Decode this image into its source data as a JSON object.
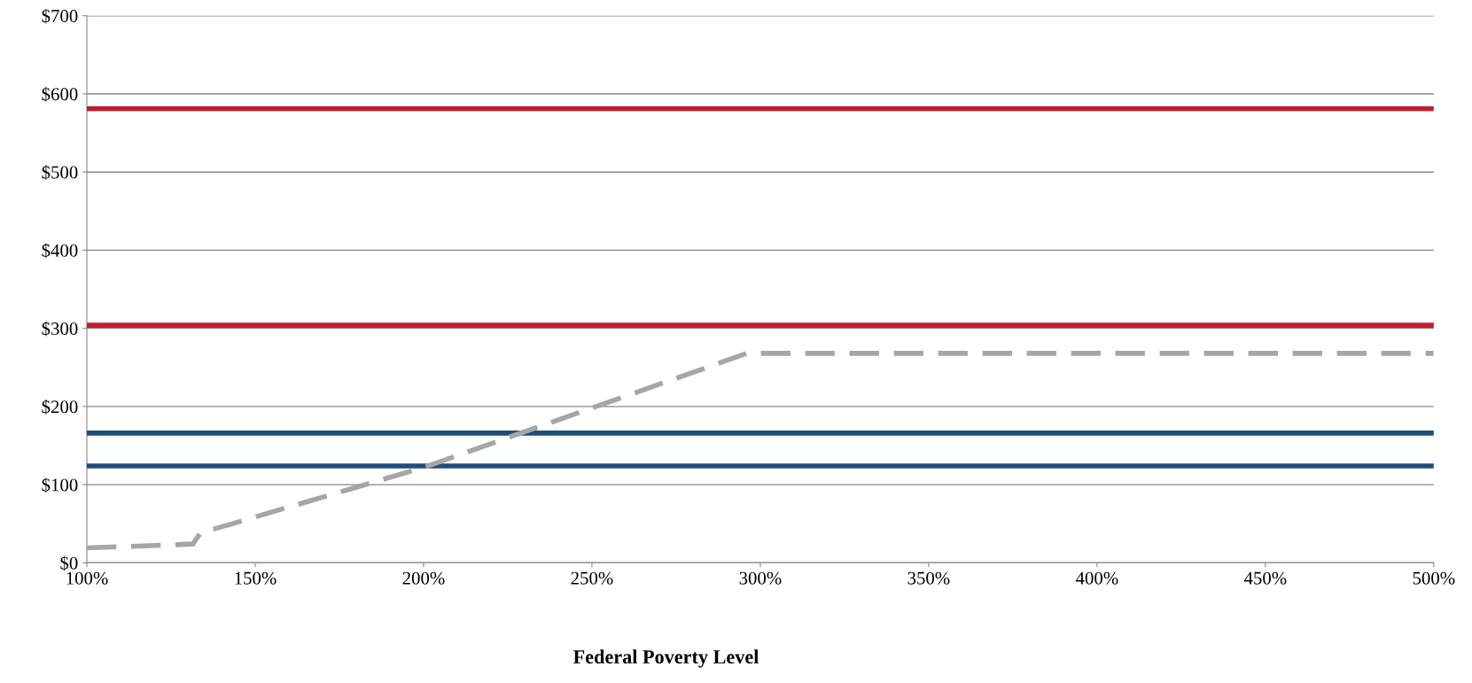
{
  "chart_data": {
    "type": "line",
    "xlabel": "Federal Poverty Level",
    "xlim": [
      100,
      500
    ],
    "ylim": [
      0,
      700
    ],
    "xticks": [
      {
        "value": 100,
        "label": "100%"
      },
      {
        "value": 150,
        "label": "150%"
      },
      {
        "value": 200,
        "label": "200%"
      },
      {
        "value": 250,
        "label": "250%"
      },
      {
        "value": 300,
        "label": "300%"
      },
      {
        "value": 350,
        "label": "350%"
      },
      {
        "value": 400,
        "label": "400%"
      },
      {
        "value": 450,
        "label": "450%"
      },
      {
        "value": 500,
        "label": "500%"
      }
    ],
    "yticks": [
      {
        "value": 0,
        "label": "$0"
      },
      {
        "value": 100,
        "label": "$100"
      },
      {
        "value": 200,
        "label": "$200"
      },
      {
        "value": 300,
        "label": "$300"
      },
      {
        "value": 400,
        "label": "$400"
      },
      {
        "value": 500,
        "label": "$500"
      },
      {
        "value": 600,
        "label": "$600"
      },
      {
        "value": 700,
        "label": "$700"
      }
    ],
    "grid": "y",
    "legend": false,
    "marker": "none",
    "series": [
      {
        "color": "#be1e2d",
        "x": [
          100,
          500
        ],
        "values": [
          581,
          581
        ],
        "line_style": "solid"
      },
      {
        "color": "#be1e2d",
        "x": [
          100,
          500
        ],
        "values": [
          304,
          304
        ],
        "line_style": "solid"
      },
      {
        "color": "#1f4e79",
        "x": [
          100,
          500
        ],
        "values": [
          166,
          166
        ],
        "line_style": "solid"
      },
      {
        "color": "#1f4e79",
        "x": [
          100,
          500
        ],
        "values": [
          124,
          124
        ],
        "line_style": "solid"
      },
      {
        "color": "#a6a6a6",
        "x": [
          100,
          131.5,
          133.7,
          200,
          296,
          500
        ],
        "values": [
          19,
          24,
          38,
          122,
          268,
          268
        ],
        "line_style": "dashed"
      }
    ]
  }
}
